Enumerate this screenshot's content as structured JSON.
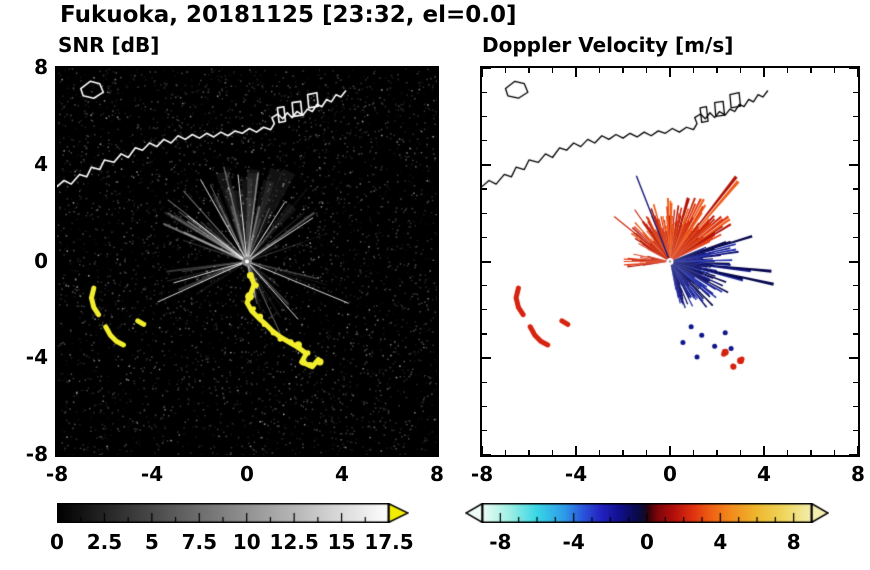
{
  "title": "Fukuoka, 20181125 [23:32, el=0.0]",
  "panels": {
    "snr": {
      "title": "SNR [dB]"
    },
    "vel": {
      "title": "Doppler Velocity [m/s]"
    }
  },
  "geo": {
    "coastline": [
      [
        -8,
        3.1
      ],
      [
        -7.7,
        3.35
      ],
      [
        -7.4,
        3.2
      ],
      [
        -7.05,
        3.6
      ],
      [
        -6.75,
        3.5
      ],
      [
        -6.55,
        3.9
      ],
      [
        -6.2,
        3.8
      ],
      [
        -6.0,
        4.2
      ],
      [
        -5.6,
        4.1
      ],
      [
        -5.3,
        4.45
      ],
      [
        -5.0,
        4.3
      ],
      [
        -4.7,
        4.7
      ],
      [
        -4.4,
        4.6
      ],
      [
        -4.1,
        4.9
      ],
      [
        -3.8,
        4.75
      ],
      [
        -3.5,
        5.05
      ],
      [
        -3.2,
        4.9
      ],
      [
        -2.9,
        5.2
      ],
      [
        -2.6,
        5.05
      ],
      [
        -2.3,
        5.25
      ],
      [
        -2.0,
        5.1
      ],
      [
        -1.7,
        5.3
      ],
      [
        -1.4,
        5.15
      ],
      [
        -1.1,
        5.35
      ],
      [
        -0.8,
        5.2
      ],
      [
        -0.5,
        5.4
      ],
      [
        -0.2,
        5.3
      ],
      [
        0.1,
        5.5
      ],
      [
        0.4,
        5.35
      ],
      [
        0.7,
        5.55
      ],
      [
        1.0,
        5.45
      ],
      [
        1.15,
        5.7
      ],
      [
        1.05,
        5.95
      ],
      [
        1.3,
        6.1
      ],
      [
        1.5,
        5.9
      ],
      [
        1.7,
        6.15
      ],
      [
        1.9,
        5.95
      ],
      [
        2.1,
        6.2
      ],
      [
        2.35,
        6.05
      ],
      [
        2.55,
        6.3
      ],
      [
        2.75,
        6.2
      ],
      [
        2.95,
        6.5
      ],
      [
        3.15,
        6.4
      ],
      [
        3.35,
        6.7
      ],
      [
        3.55,
        6.6
      ],
      [
        3.75,
        6.9
      ],
      [
        3.95,
        6.8
      ],
      [
        4.15,
        7.05
      ]
    ],
    "island": [
      [
        -7.0,
        7.15
      ],
      [
        -6.6,
        7.45
      ],
      [
        -6.2,
        7.35
      ],
      [
        -6.05,
        7.0
      ],
      [
        -6.45,
        6.75
      ],
      [
        -6.9,
        6.85
      ]
    ],
    "harbor_blocks": [
      [
        [
          1.35,
          5.75
        ],
        [
          1.62,
          5.8
        ],
        [
          1.55,
          6.4
        ],
        [
          1.28,
          6.35
        ]
      ],
      [
        [
          1.95,
          6.0
        ],
        [
          2.32,
          6.05
        ],
        [
          2.26,
          6.62
        ],
        [
          1.9,
          6.57
        ]
      ],
      [
        [
          2.6,
          6.35
        ],
        [
          3.0,
          6.42
        ],
        [
          2.94,
          6.98
        ],
        [
          2.55,
          6.9
        ]
      ]
    ]
  },
  "chart_data": [
    {
      "type": "heatmap",
      "id": "snr",
      "title": "SNR [dB]",
      "subtitle_of": "Fukuoka radar PPI, elevation 0.0 deg, 2018-11-25 23:32",
      "xlim": [
        -8,
        8
      ],
      "ylim": [
        -8,
        8
      ],
      "x_ticks": [
        -8,
        -4,
        0,
        4,
        8
      ],
      "y_ticks": [
        8,
        4,
        0,
        -4,
        -8
      ],
      "minor_tick_step": 1,
      "grid": false,
      "radar_center": [
        0,
        0
      ],
      "background": "#000000",
      "colorbar": {
        "min": 0,
        "max": 17.5,
        "labels": [
          "0",
          "2.5",
          "5",
          "7.5",
          "10",
          "12.5",
          "15",
          "17.5"
        ],
        "label_values": [
          0,
          2.5,
          5,
          7.5,
          10,
          12.5,
          15,
          17.5
        ],
        "minor_tick": 1.25,
        "major_tick": 2.5,
        "stops": [
          [
            0,
            "#000000"
          ],
          [
            1,
            "#ffffff"
          ]
        ],
        "over_color": "#f2ec00"
      },
      "features": {
        "noise_seed": 7,
        "ray_sectors": [
          {
            "a0": 15,
            "a1": 168,
            "count": 46,
            "lmin": 1.3,
            "lmax": 4.3
          },
          {
            "a0": -78,
            "a1": -8,
            "count": 15,
            "lmin": 1.2,
            "lmax": 3.6
          },
          {
            "a0": 186,
            "a1": 214,
            "count": 6,
            "lmin": 1.5,
            "lmax": 4.4
          }
        ],
        "bright_rays": [
          {
            "a": 33,
            "l": 3.3
          },
          {
            "a": 57,
            "l": 2.9
          },
          {
            "a": 96,
            "l": 3.6
          },
          {
            "a": 120,
            "l": 3.9
          },
          {
            "a": 143,
            "l": 3.1
          },
          {
            "a": 204,
            "l": 4.1
          },
          {
            "a": 196,
            "l": 3.2
          },
          {
            "a": -22,
            "l": 4.6
          },
          {
            "a": -48,
            "l": 3.2
          }
        ],
        "faint_wedges": {
          "count": 14,
          "a0": 18,
          "a1": 165,
          "rmin": 2.0,
          "rmax": 4.2,
          "alpha": 0.07,
          "halfw_deg": 4
        },
        "echo_chain": [
          [
            0.15,
            -0.55
          ],
          [
            0.3,
            -0.95
          ],
          [
            0.15,
            -1.35
          ],
          [
            0.0,
            -1.7
          ],
          [
            0.2,
            -2.05
          ],
          [
            0.5,
            -2.35
          ],
          [
            0.8,
            -2.6
          ],
          [
            1.1,
            -2.9
          ],
          [
            1.45,
            -3.15
          ],
          [
            1.8,
            -3.35
          ],
          [
            2.15,
            -3.55
          ],
          [
            2.5,
            -3.8
          ],
          [
            2.3,
            -4.15
          ],
          [
            2.75,
            -4.35
          ],
          [
            3.0,
            -4.05
          ]
        ],
        "west_arcs": [
          [
            [
              -6.45,
              -1.1
            ],
            [
              -6.55,
              -1.5
            ],
            [
              -6.45,
              -1.9
            ],
            [
              -6.25,
              -2.2
            ]
          ],
          [
            [
              -5.95,
              -2.7
            ],
            [
              -5.75,
              -3.05
            ],
            [
              -5.5,
              -3.3
            ],
            [
              -5.2,
              -3.45
            ]
          ],
          [
            [
              -4.6,
              -2.45
            ],
            [
              -4.35,
              -2.6
            ]
          ]
        ],
        "echo_color": "#f2ee2c",
        "coast_color": "#ffffff"
      }
    },
    {
      "type": "heatmap",
      "id": "vel",
      "title": "Doppler Velocity [m/s]",
      "xlim": [
        -8,
        8
      ],
      "ylim": [
        -8,
        8
      ],
      "x_ticks": [
        -8,
        -4,
        0,
        4,
        8
      ],
      "y_ticks": [
        8,
        4,
        0,
        -4,
        -8
      ],
      "minor_tick_step": 1,
      "grid": false,
      "radar_center": [
        0,
        0
      ],
      "background": "#ffffff",
      "colorbar": {
        "min": -9,
        "max": 9,
        "labels": [
          "-8",
          "-4",
          "0",
          "4",
          "8"
        ],
        "label_values": [
          -8,
          -4,
          0,
          4,
          8
        ],
        "minor_tick": 1,
        "major_tick": 4,
        "stops": [
          [
            0,
            "#eefdf6"
          ],
          [
            0.083,
            "#9ef0e4"
          ],
          [
            0.167,
            "#38d6e6"
          ],
          [
            0.25,
            "#2f9ae8"
          ],
          [
            0.306,
            "#2a55dc"
          ],
          [
            0.361,
            "#2222c0"
          ],
          [
            0.417,
            "#10108c"
          ],
          [
            0.467,
            "#0a0a50"
          ],
          [
            0.494,
            "#140a28"
          ],
          [
            0.506,
            "#3c0208"
          ],
          [
            0.533,
            "#80060a"
          ],
          [
            0.583,
            "#b5100c"
          ],
          [
            0.639,
            "#df3210"
          ],
          [
            0.694,
            "#ef6014"
          ],
          [
            0.75,
            "#f2891c"
          ],
          [
            0.833,
            "#eeb82e"
          ],
          [
            0.917,
            "#efd75e"
          ],
          [
            1,
            "#f4eeb0"
          ]
        ],
        "under_color": "#eefdf6",
        "over_color": "#f4eeb0"
      },
      "features": {
        "red_fan": {
          "a0": 26,
          "a1": 153,
          "base": 1.4,
          "vr": 1.5,
          "step": 1.2,
          "spike_a0": 30,
          "spike_a1": 80,
          "spike_p": 0.22,
          "spike_len": 1.5,
          "taper": [
            1.15,
            0.7
          ],
          "colors": [
            "#e33810",
            "#cc2a0c",
            "#f05c16",
            "#b31408"
          ],
          "seed": 42
        },
        "west_wedge": {
          "a0": 167,
          "a1": 188,
          "base": 0.8,
          "vr": 1.2,
          "step": 1.0,
          "spike_a0": 0,
          "spike_a1": 0,
          "spike_p": 0,
          "spike_len": 0,
          "taper": [
            1,
            1
          ],
          "colors": [
            "#e33810",
            "#b31408"
          ],
          "seed": 5
        },
        "blue_fan": {
          "a0": -78,
          "a1": 22,
          "base": 1.2,
          "vr": 1.6,
          "step": 1.1,
          "spike_a0": -15,
          "spike_a1": 20,
          "spike_p": 0.25,
          "spike_len": 1.6,
          "taper": [
            0.8,
            1.2
          ],
          "colors": [
            "#141a92",
            "#0c0c6e",
            "#1e2eae",
            "#07074e"
          ],
          "seed": 77
        },
        "streaks": [
          {
            "a": 112,
            "l": 3.8,
            "color": "#181878",
            "w": 1.4
          },
          {
            "a": 142,
            "l": 3.0,
            "color": "#d03010",
            "w": 1.3
          },
          {
            "a": 125,
            "l": 2.6,
            "color": "#c02810",
            "w": 1.2
          }
        ],
        "blue_dots": [
          [
            0.9,
            -2.7
          ],
          [
            1.35,
            -3.05
          ],
          [
            1.9,
            -3.5
          ],
          [
            1.15,
            -3.95
          ],
          [
            2.35,
            -2.95
          ],
          [
            0.55,
            -3.35
          ],
          [
            2.6,
            -3.6
          ]
        ],
        "red_patches": [
          [
            2.35,
            -3.75
          ],
          [
            2.7,
            -4.35
          ],
          [
            3.0,
            -4.1
          ]
        ],
        "west_arcs": [
          [
            [
              -6.45,
              -1.1
            ],
            [
              -6.55,
              -1.5
            ],
            [
              -6.45,
              -1.9
            ],
            [
              -6.25,
              -2.2
            ]
          ],
          [
            [
              -5.95,
              -2.7
            ],
            [
              -5.75,
              -3.05
            ],
            [
              -5.5,
              -3.3
            ],
            [
              -5.2,
              -3.45
            ]
          ],
          [
            [
              -4.6,
              -2.45
            ],
            [
              -4.35,
              -2.6
            ]
          ]
        ],
        "red_color": "#d6220e",
        "blue_color": "#10168a",
        "center_hole_r": 3.5,
        "coast_color": "#000000"
      }
    }
  ]
}
